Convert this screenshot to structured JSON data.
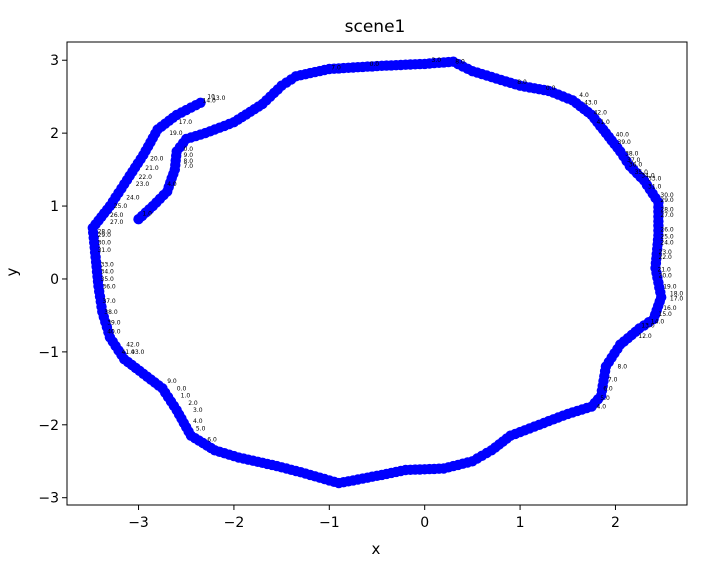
{
  "chart_data": {
    "type": "scatter",
    "title": "scene1",
    "xlabel": "x",
    "ylabel": "y",
    "xlim": [
      -3.75,
      2.75
    ],
    "ylim": [
      -3.1,
      3.25
    ],
    "xticks": [
      -3,
      -2,
      -1,
      0,
      1,
      2
    ],
    "yticks": [
      -3,
      -2,
      -1,
      0,
      1,
      2,
      3
    ],
    "xtick_labels": [
      "−3",
      "−2",
      "−1",
      "0",
      "1",
      "2"
    ],
    "ytick_labels": [
      "−3",
      "−2",
      "−1",
      "0",
      "1",
      "2",
      "3"
    ],
    "grid": false,
    "marker_color": "#0000ff",
    "label_color": "#000000",
    "anchors": [
      [
        -3.0,
        0.82
      ],
      [
        -2.85,
        1.0
      ],
      [
        -2.7,
        1.2
      ],
      [
        -2.62,
        1.5
      ],
      [
        -2.6,
        1.75
      ],
      [
        -2.5,
        1.92
      ],
      [
        -2.3,
        2.0
      ],
      [
        -2.0,
        2.15
      ],
      [
        -1.7,
        2.4
      ],
      [
        -1.5,
        2.65
      ],
      [
        -1.35,
        2.78
      ],
      [
        -1.0,
        2.88
      ],
      [
        -0.5,
        2.92
      ],
      [
        0.0,
        2.95
      ],
      [
        0.3,
        2.98
      ],
      [
        0.5,
        2.85
      ],
      [
        0.75,
        2.75
      ],
      [
        1.0,
        2.65
      ],
      [
        1.3,
        2.58
      ],
      [
        1.55,
        2.45
      ],
      [
        1.75,
        2.25
      ],
      [
        1.9,
        2.0
      ],
      [
        2.05,
        1.75
      ],
      [
        2.15,
        1.55
      ],
      [
        2.3,
        1.35
      ],
      [
        2.45,
        1.05
      ],
      [
        2.45,
        0.6
      ],
      [
        2.42,
        0.15
      ],
      [
        2.48,
        -0.25
      ],
      [
        2.4,
        -0.55
      ],
      [
        2.25,
        -0.68
      ],
      [
        2.05,
        -0.9
      ],
      [
        1.9,
        -1.2
      ],
      [
        1.85,
        -1.6
      ],
      [
        1.75,
        -1.75
      ],
      [
        1.5,
        -1.85
      ],
      [
        1.2,
        -2.0
      ],
      [
        0.9,
        -2.15
      ],
      [
        0.7,
        -2.35
      ],
      [
        0.5,
        -2.5
      ],
      [
        0.2,
        -2.6
      ],
      [
        -0.2,
        -2.62
      ],
      [
        -0.5,
        -2.7
      ],
      [
        -0.9,
        -2.8
      ],
      [
        -1.3,
        -2.65
      ],
      [
        -1.6,
        -2.55
      ],
      [
        -1.95,
        -2.45
      ],
      [
        -2.2,
        -2.35
      ],
      [
        -2.45,
        -2.15
      ],
      [
        -2.6,
        -1.8
      ],
      [
        -2.75,
        -1.5
      ],
      [
        -2.95,
        -1.3
      ],
      [
        -3.15,
        -1.1
      ],
      [
        -3.3,
        -0.8
      ],
      [
        -3.38,
        -0.45
      ],
      [
        -3.42,
        -0.1
      ],
      [
        -3.45,
        0.3
      ],
      [
        -3.48,
        0.7
      ],
      [
        -3.3,
        1.0
      ],
      [
        -3.15,
        1.3
      ],
      [
        -2.95,
        1.7
      ],
      [
        -2.8,
        2.05
      ],
      [
        -2.6,
        2.25
      ],
      [
        -2.3,
        2.45
      ]
    ],
    "labeled_points": [
      [
        -2.98,
        0.9,
        "1.0"
      ],
      [
        -2.72,
        1.3,
        "4.0"
      ],
      [
        -2.55,
        1.55,
        "7.0"
      ],
      [
        -2.55,
        1.62,
        "8.0"
      ],
      [
        -2.55,
        1.7,
        "9.0"
      ],
      [
        -2.55,
        1.78,
        "0.0"
      ],
      [
        -1.0,
        2.9,
        "7.0"
      ],
      [
        -0.6,
        2.95,
        "0.0"
      ],
      [
        0.05,
        3.0,
        "3.0"
      ],
      [
        0.3,
        2.98,
        "8.0"
      ],
      [
        0.95,
        2.7,
        "8.0"
      ],
      [
        1.25,
        2.62,
        "0.0"
      ],
      [
        1.6,
        2.52,
        "4.0"
      ],
      [
        1.65,
        2.42,
        "43.0"
      ],
      [
        1.75,
        2.28,
        "42.0"
      ],
      [
        1.78,
        2.15,
        "41.0"
      ],
      [
        1.98,
        1.98,
        "40.0"
      ],
      [
        2.0,
        1.88,
        "39.0"
      ],
      [
        2.08,
        1.72,
        "38.0"
      ],
      [
        2.1,
        1.63,
        "37.0"
      ],
      [
        2.12,
        1.57,
        "36.0"
      ],
      [
        2.18,
        1.47,
        "35.0"
      ],
      [
        2.25,
        1.42,
        "34.0"
      ],
      [
        2.32,
        1.38,
        "33.0"
      ],
      [
        2.32,
        1.27,
        "31.0"
      ],
      [
        2.45,
        1.15,
        "30.0"
      ],
      [
        2.45,
        1.08,
        "29.0"
      ],
      [
        2.45,
        0.95,
        "28.0"
      ],
      [
        2.45,
        0.88,
        "27.0"
      ],
      [
        2.45,
        0.68,
        "26.0"
      ],
      [
        2.45,
        0.58,
        "25.0"
      ],
      [
        2.45,
        0.5,
        "24.0"
      ],
      [
        2.43,
        0.37,
        "23.0"
      ],
      [
        2.43,
        0.3,
        "22.0"
      ],
      [
        2.42,
        0.13,
        "21.0"
      ],
      [
        2.43,
        0.05,
        "20.0"
      ],
      [
        2.48,
        -0.1,
        "19.0"
      ],
      [
        2.55,
        -0.2,
        "18.0"
      ],
      [
        2.55,
        -0.27,
        "17.0"
      ],
      [
        2.48,
        -0.4,
        "16.0"
      ],
      [
        2.43,
        -0.48,
        "15.0"
      ],
      [
        2.35,
        -0.58,
        "14.0"
      ],
      [
        2.25,
        -0.64,
        "13.0"
      ],
      [
        2.22,
        -0.78,
        "12.0"
      ],
      [
        2.0,
        -1.2,
        "8.0"
      ],
      [
        1.9,
        -1.38,
        "7.0"
      ],
      [
        1.85,
        -1.5,
        "6.0"
      ],
      [
        1.82,
        -1.63,
        "5.0"
      ],
      [
        1.78,
        -1.75,
        "4.0"
      ],
      [
        -2.72,
        -1.4,
        "9.0"
      ],
      [
        -2.62,
        -1.5,
        "0.0"
      ],
      [
        -2.58,
        -1.6,
        "1.0"
      ],
      [
        -2.5,
        -1.7,
        "2.0"
      ],
      [
        -2.45,
        -1.8,
        "3.0"
      ],
      [
        -2.45,
        -1.95,
        "4.0"
      ],
      [
        -2.42,
        -2.05,
        "5.0"
      ],
      [
        -2.3,
        -2.2,
        "6.0"
      ],
      [
        -3.2,
        -1.0,
        "41.0"
      ],
      [
        -3.15,
        -0.9,
        "42.0"
      ],
      [
        -3.1,
        -1.0,
        "43.0"
      ],
      [
        -3.35,
        -0.72,
        "40.0"
      ],
      [
        -3.35,
        -0.6,
        "39.0"
      ],
      [
        -3.38,
        -0.45,
        "38.0"
      ],
      [
        -3.4,
        -0.3,
        "37.0"
      ],
      [
        -3.4,
        -0.1,
        "36.0"
      ],
      [
        -3.42,
        0.0,
        "35.0"
      ],
      [
        -3.42,
        0.1,
        "34.0"
      ],
      [
        -3.42,
        0.2,
        "33.0"
      ],
      [
        -3.45,
        0.4,
        "31.0"
      ],
      [
        -3.45,
        0.5,
        "30.0"
      ],
      [
        -3.45,
        0.6,
        "29.0"
      ],
      [
        -3.45,
        0.65,
        "28.0"
      ],
      [
        -3.32,
        0.78,
        "27.0"
      ],
      [
        -3.32,
        0.88,
        "26.0"
      ],
      [
        -3.28,
        1.0,
        "25.0"
      ],
      [
        -3.15,
        1.12,
        "24.0"
      ],
      [
        -3.05,
        1.3,
        "23.0"
      ],
      [
        -3.02,
        1.4,
        "22.0"
      ],
      [
        -2.95,
        1.52,
        "21.0"
      ],
      [
        -2.9,
        1.65,
        "20.0"
      ],
      [
        -2.7,
        2.0,
        "19.0"
      ],
      [
        -2.6,
        2.15,
        "17.0"
      ],
      [
        -2.35,
        2.45,
        "14.0"
      ],
      [
        -2.25,
        2.48,
        "13.0"
      ],
      [
        -2.3,
        2.5,
        "10"
      ]
    ]
  }
}
